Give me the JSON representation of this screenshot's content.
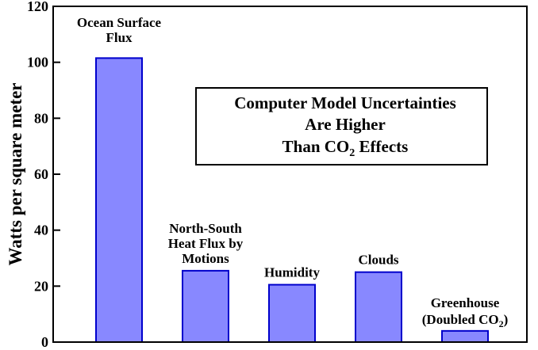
{
  "chart_data": {
    "type": "bar",
    "categories": [
      [
        "Ocean Surface",
        "Flux"
      ],
      [
        "North-South",
        "Heat Flux by",
        "Motions"
      ],
      [
        "Humidity"
      ],
      [
        "Clouds"
      ],
      [
        "Greenhouse",
        "(Doubled CO",
        "2",
        ")"
      ]
    ],
    "values": [
      101.5,
      25.5,
      20.5,
      25,
      4
    ],
    "ylabel": "Watts per square meter",
    "ylim": [
      0,
      120
    ],
    "yticks": [
      "0",
      "20",
      "40",
      "60",
      "80",
      "100",
      "120"
    ],
    "title_lines": [
      "Computer Model Uncertainties",
      "Are Higher",
      "Than CO",
      "2",
      " Effects"
    ],
    "grid": false,
    "colors": {
      "bar_fill": "#8888ff",
      "bar_stroke": "#0000cc",
      "axis": "#000000"
    }
  }
}
